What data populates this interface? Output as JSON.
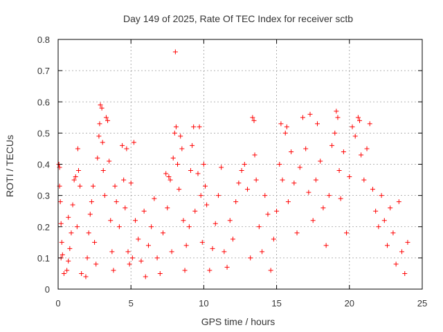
{
  "chart_data": {
    "type": "scatter",
    "title": "Day 149 of 2025, Rate Of TEC Index for receiver sctb",
    "xlabel": "GPS time / hours",
    "ylabel": "ROTI / TECUs",
    "xlim": [
      0,
      25
    ],
    "ylim": [
      0,
      0.8
    ],
    "x_ticks": [
      0,
      5,
      10,
      15,
      20,
      25
    ],
    "x_tick_labels": [
      "0",
      "5",
      "10",
      "15",
      "20",
      "25"
    ],
    "y_ticks": [
      0,
      0.1,
      0.2,
      0.3,
      0.4,
      0.5,
      0.6,
      0.7,
      0.8
    ],
    "y_tick_labels": [
      "0",
      "0.1",
      "0.2",
      "0.3",
      "0.4",
      "0.5",
      "0.6",
      "0.7",
      "0.8"
    ],
    "grid": true,
    "marker": "plus",
    "marker_color": "#ff0000",
    "series": [
      {
        "name": "ROTI",
        "points": [
          [
            0.05,
            0.4
          ],
          [
            0.1,
            0.39
          ],
          [
            0.1,
            0.33
          ],
          [
            0.15,
            0.28
          ],
          [
            0.2,
            0.21
          ],
          [
            0.25,
            0.15
          ],
          [
            0.3,
            0.11
          ],
          [
            0.2,
            0.1
          ],
          [
            0.4,
            0.05
          ],
          [
            0.6,
            0.06
          ],
          [
            0.7,
            0.09
          ],
          [
            0.8,
            0.13
          ],
          [
            0.9,
            0.18
          ],
          [
            0.7,
            0.23
          ],
          [
            1.0,
            0.27
          ],
          [
            1.1,
            0.35
          ],
          [
            1.2,
            0.36
          ],
          [
            1.3,
            0.2
          ],
          [
            1.35,
            0.45
          ],
          [
            1.4,
            0.38
          ],
          [
            1.5,
            0.33
          ],
          [
            1.6,
            0.05
          ],
          [
            1.9,
            0.04
          ],
          [
            2.0,
            0.1
          ],
          [
            2.1,
            0.18
          ],
          [
            2.2,
            0.24
          ],
          [
            2.3,
            0.28
          ],
          [
            2.4,
            0.33
          ],
          [
            2.5,
            0.15
          ],
          [
            2.6,
            0.08
          ],
          [
            2.7,
            0.42
          ],
          [
            2.8,
            0.49
          ],
          [
            2.85,
            0.53
          ],
          [
            2.9,
            0.59
          ],
          [
            3.0,
            0.58
          ],
          [
            3.05,
            0.47
          ],
          [
            3.1,
            0.38
          ],
          [
            3.2,
            0.3
          ],
          [
            3.3,
            0.55
          ],
          [
            3.4,
            0.54
          ],
          [
            3.5,
            0.41
          ],
          [
            3.6,
            0.22
          ],
          [
            3.7,
            0.12
          ],
          [
            3.8,
            0.06
          ],
          [
            3.9,
            0.33
          ],
          [
            4.0,
            0.28
          ],
          [
            4.2,
            0.2
          ],
          [
            4.4,
            0.46
          ],
          [
            4.5,
            0.35
          ],
          [
            4.6,
            0.26
          ],
          [
            4.7,
            0.45
          ],
          [
            4.8,
            0.12
          ],
          [
            4.9,
            0.08
          ],
          [
            5.0,
            0.34
          ],
          [
            5.1,
            0.1
          ],
          [
            5.2,
            0.47
          ],
          [
            5.3,
            0.22
          ],
          [
            5.5,
            0.16
          ],
          [
            5.7,
            0.09
          ],
          [
            5.9,
            0.25
          ],
          [
            6.0,
            0.04
          ],
          [
            6.2,
            0.14
          ],
          [
            6.4,
            0.2
          ],
          [
            6.6,
            0.29
          ],
          [
            6.8,
            0.1
          ],
          [
            7.0,
            0.05
          ],
          [
            7.2,
            0.18
          ],
          [
            7.4,
            0.37
          ],
          [
            7.5,
            0.26
          ],
          [
            7.6,
            0.36
          ],
          [
            7.7,
            0.35
          ],
          [
            7.8,
            0.12
          ],
          [
            7.9,
            0.42
          ],
          [
            8.0,
            0.5
          ],
          [
            8.05,
            0.76
          ],
          [
            8.1,
            0.52
          ],
          [
            8.2,
            0.4
          ],
          [
            8.3,
            0.32
          ],
          [
            8.4,
            0.49
          ],
          [
            8.5,
            0.45
          ],
          [
            8.6,
            0.22
          ],
          [
            8.7,
            0.06
          ],
          [
            8.8,
            0.14
          ],
          [
            9.0,
            0.2
          ],
          [
            9.1,
            0.38
          ],
          [
            9.2,
            0.46
          ],
          [
            9.3,
            0.52
          ],
          [
            9.4,
            0.25
          ],
          [
            9.6,
            0.37
          ],
          [
            9.7,
            0.52
          ],
          [
            9.8,
            0.3
          ],
          [
            9.9,
            0.15
          ],
          [
            10.0,
            0.4
          ],
          [
            10.1,
            0.33
          ],
          [
            10.2,
            0.27
          ],
          [
            10.4,
            0.06
          ],
          [
            10.6,
            0.13
          ],
          [
            10.8,
            0.21
          ],
          [
            11.0,
            0.3
          ],
          [
            11.2,
            0.39
          ],
          [
            11.4,
            0.12
          ],
          [
            11.6,
            0.07
          ],
          [
            11.8,
            0.22
          ],
          [
            12.0,
            0.16
          ],
          [
            12.2,
            0.28
          ],
          [
            12.4,
            0.34
          ],
          [
            12.6,
            0.38
          ],
          [
            12.8,
            0.4
          ],
          [
            13.0,
            0.32
          ],
          [
            13.2,
            0.1
          ],
          [
            13.35,
            0.55
          ],
          [
            13.45,
            0.54
          ],
          [
            13.5,
            0.43
          ],
          [
            13.6,
            0.35
          ],
          [
            13.8,
            0.2
          ],
          [
            14.0,
            0.12
          ],
          [
            14.2,
            0.3
          ],
          [
            14.4,
            0.24
          ],
          [
            14.6,
            0.06
          ],
          [
            14.8,
            0.16
          ],
          [
            15.0,
            0.25
          ],
          [
            15.2,
            0.4
          ],
          [
            15.3,
            0.53
          ],
          [
            15.4,
            0.35
          ],
          [
            15.6,
            0.5
          ],
          [
            15.7,
            0.52
          ],
          [
            15.8,
            0.28
          ],
          [
            16.0,
            0.44
          ],
          [
            16.2,
            0.34
          ],
          [
            16.4,
            0.18
          ],
          [
            16.6,
            0.39
          ],
          [
            16.8,
            0.55
          ],
          [
            17.0,
            0.45
          ],
          [
            17.2,
            0.31
          ],
          [
            17.3,
            0.56
          ],
          [
            17.5,
            0.22
          ],
          [
            17.7,
            0.35
          ],
          [
            17.8,
            0.53
          ],
          [
            18.0,
            0.41
          ],
          [
            18.2,
            0.26
          ],
          [
            18.4,
            0.14
          ],
          [
            18.6,
            0.3
          ],
          [
            18.8,
            0.46
          ],
          [
            19.0,
            0.5
          ],
          [
            19.1,
            0.57
          ],
          [
            19.2,
            0.55
          ],
          [
            19.3,
            0.38
          ],
          [
            19.4,
            0.29
          ],
          [
            19.6,
            0.44
          ],
          [
            19.8,
            0.18
          ],
          [
            20.0,
            0.36
          ],
          [
            20.2,
            0.52
          ],
          [
            20.4,
            0.49
          ],
          [
            20.6,
            0.55
          ],
          [
            20.7,
            0.54
          ],
          [
            20.8,
            0.43
          ],
          [
            21.0,
            0.35
          ],
          [
            21.2,
            0.45
          ],
          [
            21.4,
            0.53
          ],
          [
            21.6,
            0.32
          ],
          [
            21.8,
            0.25
          ],
          [
            22.0,
            0.2
          ],
          [
            22.2,
            0.3
          ],
          [
            22.4,
            0.22
          ],
          [
            22.6,
            0.14
          ],
          [
            22.8,
            0.26
          ],
          [
            23.0,
            0.18
          ],
          [
            23.2,
            0.08
          ],
          [
            23.4,
            0.28
          ],
          [
            23.6,
            0.12
          ],
          [
            23.8,
            0.05
          ],
          [
            24.0,
            0.15
          ]
        ]
      }
    ]
  }
}
